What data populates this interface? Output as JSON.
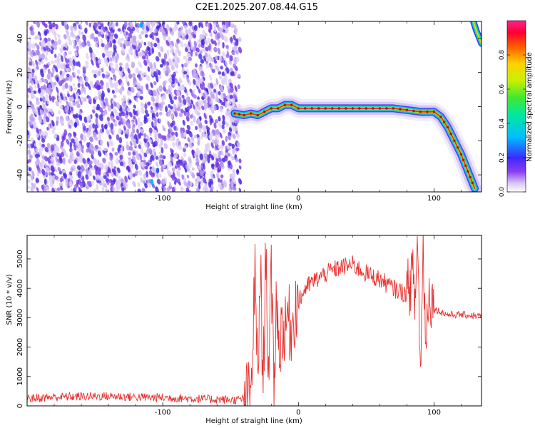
{
  "title": "C2E1.2025.207.08.44.G15",
  "chart_data": [
    {
      "type": "heatmap",
      "xlabel": "Height of straight line (km)",
      "ylabel": "Frequency (Hz)",
      "xlim": [
        -200,
        135
      ],
      "ylim": [
        -50,
        50
      ],
      "xticks": [
        -100,
        0,
        100
      ],
      "yticks": [
        -40,
        -20,
        0,
        20,
        40
      ],
      "colorbar": {
        "label": "Normalized spectral amplitude",
        "range": [
          0,
          1
        ],
        "ticks": [
          0.0,
          0.2,
          0.4,
          0.6,
          0.8
        ]
      },
      "noise_region_x": [
        -200,
        -45
      ],
      "signal_track": {
        "x": [
          -47,
          -40,
          -35,
          -30,
          -25,
          -20,
          -15,
          -10,
          -5,
          0,
          10,
          20,
          30,
          40,
          50,
          60,
          70,
          80,
          90,
          100,
          105,
          110,
          115,
          120,
          125,
          130
        ],
        "y": [
          -4,
          -5,
          -4,
          -5,
          -3,
          -1,
          -1,
          1,
          1,
          -1,
          -1,
          -1,
          -1,
          -1,
          -1,
          -1,
          -1,
          -2,
          -3,
          -3,
          -6,
          -12,
          -20,
          -28,
          -38,
          -48
        ]
      },
      "upper_track": {
        "x": [
          129,
          131,
          133,
          135
        ],
        "y": [
          50,
          45,
          41,
          37
        ]
      }
    },
    {
      "type": "line",
      "xlabel": "Height of straight line (km)",
      "ylabel": "SNR (10 * v/v)",
      "xlim": [
        -200,
        135
      ],
      "ylim": [
        0,
        5800
      ],
      "xticks": [
        -100,
        0,
        100
      ],
      "yticks": [
        0,
        1000,
        2000,
        3000,
        4000,
        5000
      ],
      "color": "#e8302e",
      "series": [
        {
          "x": [
            -200,
            -180,
            -160,
            -140,
            -120,
            -100,
            -80,
            -60,
            -45,
            -35,
            -32,
            -30,
            -28,
            -26,
            -24,
            -22,
            -20,
            -18,
            -16,
            -14,
            -12,
            -10,
            -8,
            -6,
            -4,
            -2,
            0,
            5,
            10,
            20,
            30,
            40,
            50,
            60,
            70,
            80,
            84,
            86,
            88,
            90,
            92,
            94,
            96,
            100,
            110,
            120,
            135
          ],
          "y": [
            250,
            300,
            320,
            330,
            300,
            280,
            250,
            220,
            200,
            300,
            4500,
            700,
            4800,
            500,
            5400,
            1200,
            4200,
            800,
            3900,
            1600,
            3000,
            2200,
            3300,
            2600,
            2800,
            3500,
            3500,
            4000,
            4200,
            4500,
            4700,
            4800,
            4500,
            4300,
            4000,
            3800,
            4500,
            3500,
            5700,
            900,
            5500,
            2000,
            4000,
            3300,
            3100,
            3100,
            3050
          ]
        }
      ]
    }
  ]
}
